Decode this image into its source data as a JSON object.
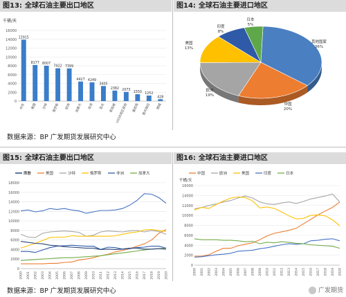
{
  "figures": [
    {
      "num": "图13:",
      "title": "全球石油主要出口地区"
    },
    {
      "num": "图14:",
      "title": "全球石油主要进口地区"
    },
    {
      "num": "图15:",
      "title": "全球石油主要出口地区"
    },
    {
      "num": "图16:",
      "title": "全球石油主要进口地区"
    }
  ],
  "sources": [
    "数据来源：BP 广发期货发展研究中心",
    "数据来源：BP 广发期货发展研究中心"
  ],
  "watermark": "广发期货",
  "chart_data": [
    {
      "type": "bar",
      "unit": "千桶/天",
      "categories": [
        "中东",
        "美国",
        "沙特",
        "俄罗斯",
        "欧洲",
        "加拿大",
        "非洲",
        "亚太",
        "新加坡",
        "USSR地区其他",
        "墨西哥",
        "委内瑞拉",
        "挪威"
      ],
      "values": [
        13915,
        8177,
        8007,
        7422,
        7399,
        4427,
        4249,
        3405,
        2382,
        2073,
        1550,
        1252,
        428
      ],
      "yticks": [
        0,
        2000,
        4000,
        6000,
        8000,
        10000,
        12000,
        14000,
        16000
      ],
      "ylim": [
        0,
        16000
      ],
      "color": "#3a7dc9"
    },
    {
      "type": "pie",
      "slices": [
        {
          "label": "其他国家",
          "value": 36,
          "text": "36%",
          "color": "#4a7fc1"
        },
        {
          "label": "中国",
          "value": 20,
          "text": "20%",
          "color": "#ed7d31"
        },
        {
          "label": "欧洲",
          "value": 19,
          "text": "19%",
          "color": "#a5a5a5"
        },
        {
          "label": "美国",
          "value": 13,
          "text": "13%",
          "color": "#ffc000"
        },
        {
          "label": "印度",
          "value": 8,
          "text": "8%",
          "color": "#2e5aa8"
        },
        {
          "label": "日本",
          "value": 5,
          "text": "5%",
          "color": "#5fa84a"
        }
      ]
    },
    {
      "type": "line",
      "x": [
        "2000",
        "2001",
        "2002",
        "2003",
        "2004",
        "2005",
        "2006",
        "2007",
        "2008",
        "2009",
        "2010",
        "2011",
        "2012",
        "2013",
        "2014",
        "2015",
        "2016",
        "2017",
        "2018",
        "2019",
        "2020"
      ],
      "yticks": [
        0,
        2000,
        4000,
        6000,
        8000,
        10000,
        12000,
        14000,
        16000,
        18000
      ],
      "ylim": [
        0,
        18000
      ],
      "series": [
        {
          "name": "中东",
          "color": "#4472c4",
          "values": [
            12100,
            12300,
            11900,
            12100,
            12600,
            12400,
            12600,
            12300,
            12100,
            11600,
            11900,
            12200,
            12200,
            12300,
            12600,
            13300,
            14300,
            15700,
            15600,
            14900,
            13700
          ]
        },
        {
          "name": "美国",
          "color": "#ed7d31",
          "values": [
            1000,
            1000,
            1000,
            1000,
            1100,
            1100,
            1300,
            1400,
            1800,
            2000,
            2300,
            2700,
            3000,
            3500,
            3800,
            4200,
            4700,
            5200,
            6000,
            7400,
            8200
          ]
        },
        {
          "name": "沙特",
          "color": "#a5a5a5",
          "values": [
            7200,
            6600,
            6500,
            7400,
            7700,
            7800,
            7900,
            7800,
            7600,
            6800,
            7000,
            7700,
            7900,
            7800,
            7700,
            7900,
            8000,
            7700,
            8000,
            7800,
            7200
          ]
        },
        {
          "name": "俄罗斯",
          "color": "#ffc000",
          "values": [
            4300,
            4800,
            5300,
            5900,
            6500,
            6600,
            6600,
            6900,
            6800,
            6800,
            6800,
            6800,
            6800,
            6900,
            7200,
            7500,
            7700,
            8100,
            8200,
            8000,
            7800
          ]
        },
        {
          "name": "非洲",
          "color": "#2e5aa8",
          "values": [
            3600,
            3600,
            3400,
            3900,
            4400,
            4700,
            4800,
            4900,
            4800,
            4700,
            4700,
            4000,
            4500,
            4400,
            4100,
            4200,
            4400,
            4500,
            4700,
            4700,
            4300
          ]
        },
        {
          "name": "加拿大",
          "color": "#70ad47",
          "values": [
            1700,
            1800,
            1900,
            2000,
            2100,
            2200,
            2300,
            2300,
            2400,
            2500,
            2600,
            2700,
            2900,
            3100,
            3300,
            3500,
            3700,
            3900,
            4100,
            4200,
            4300
          ]
        },
        {
          "name": "西欧",
          "color": "#264478",
          "values": [
            5700,
            5500,
            5300,
            5200,
            4900,
            4800,
            4600,
            4500,
            4400,
            4300,
            4300,
            4000,
            4100,
            4000,
            4100,
            4300,
            4300,
            4100,
            4100,
            4200,
            4100
          ]
        }
      ]
    },
    {
      "type": "line",
      "unit": "千桶/天",
      "x": [
        "2000",
        "2001",
        "2002",
        "2003",
        "2004",
        "2005",
        "2006",
        "2007",
        "2008",
        "2009",
        "2010",
        "2011",
        "2012",
        "2013",
        "2014",
        "2015",
        "2016",
        "2017",
        "2018",
        "2019",
        "2020"
      ],
      "yticks": [
        0,
        2000,
        4000,
        6000,
        8000,
        10000,
        12000,
        14000,
        16000
      ],
      "ylim": [
        0,
        16000
      ],
      "series": [
        {
          "name": "中国",
          "color": "#ed7d31",
          "values": [
            1800,
            1800,
            2100,
            2800,
            3400,
            3400,
            3900,
            4200,
            4500,
            5100,
            5900,
            6400,
            6700,
            7000,
            7400,
            8300,
            9200,
            10100,
            10900,
            11600,
            12700
          ]
        },
        {
          "name": "欧洲",
          "color": "#a5a5a5",
          "values": [
            11300,
            11600,
            12000,
            12300,
            12700,
            13000,
            13500,
            13900,
            13500,
            12700,
            12300,
            12200,
            12500,
            12700,
            12400,
            12800,
            13300,
            13600,
            13900,
            14300,
            12700
          ]
        },
        {
          "name": "美国",
          "color": "#ffc000",
          "values": [
            11100,
            11600,
            11400,
            12200,
            12900,
            13500,
            13700,
            13600,
            12900,
            11500,
            11700,
            11400,
            10700,
            9900,
            9300,
            9400,
            10000,
            10100,
            9900,
            9100,
            7900
          ]
        },
        {
          "name": "印度",
          "color": "#4472c4",
          "values": [
            1600,
            1700,
            1900,
            2100,
            2200,
            2400,
            2800,
            2900,
            3000,
            3300,
            3500,
            3800,
            4100,
            4300,
            4200,
            4300,
            4900,
            5000,
            5200,
            5300,
            4900
          ]
        },
        {
          "name": "日本",
          "color": "#70ad47",
          "values": [
            5300,
            5100,
            5100,
            5100,
            5000,
            5000,
            4900,
            4700,
            4800,
            4300,
            4600,
            4500,
            4700,
            4600,
            4400,
            4300,
            4100,
            4000,
            3900,
            3800,
            3400
          ]
        }
      ]
    }
  ]
}
